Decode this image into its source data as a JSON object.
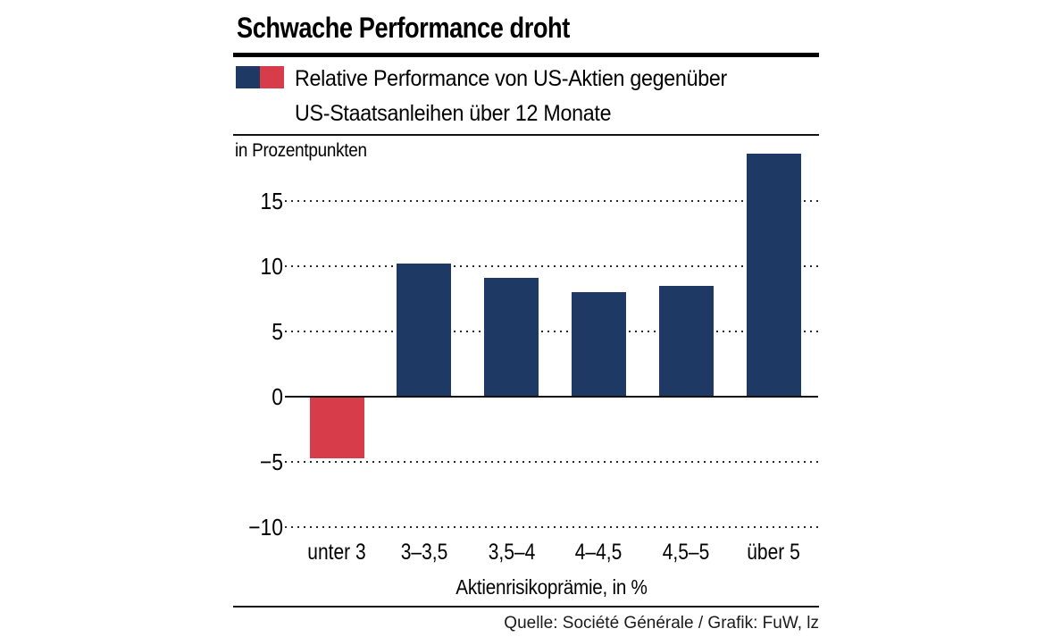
{
  "header": {
    "title": "Schwache Performance droht",
    "legend": {
      "swatches": [
        {
          "name": "positive",
          "color": "#1e3a64"
        },
        {
          "name": "negative",
          "color": "#d73c4b"
        }
      ],
      "label_line1": "Relative Performance von US-Aktien gegenüber",
      "label_line2": "US-Staatsanleihen über 12 Monate"
    }
  },
  "chart_data": {
    "type": "bar",
    "title": "Relative Performance von US-Aktien gegenüber US-Staatsanleihen über 12 Monate",
    "unit_label": "in Prozentpunkten",
    "categories": [
      "unter 3",
      "3–3,5",
      "3,5–4",
      "4–4,5",
      "4,5–5",
      "über 5"
    ],
    "values": [
      -4.7,
      10.2,
      9.1,
      8.0,
      8.5,
      18.6
    ],
    "xlabel": "Aktienrisikoprämie, in %",
    "ylabel": "in Prozentpunkten",
    "y_ticks": [
      15,
      10,
      5,
      0,
      -5,
      -10
    ],
    "y_tick_labels": [
      "15",
      "10",
      "5",
      "0",
      "−5",
      "−10"
    ],
    "ylim": [
      -10,
      20
    ],
    "grid": "dotted horizontal lines, solid zero axis",
    "legend_position": "top",
    "positive_color": "#1e3a64",
    "negative_color": "#d73c4b"
  },
  "footer": {
    "source": "Quelle: Société Générale / Grafik: FuW, lz"
  }
}
